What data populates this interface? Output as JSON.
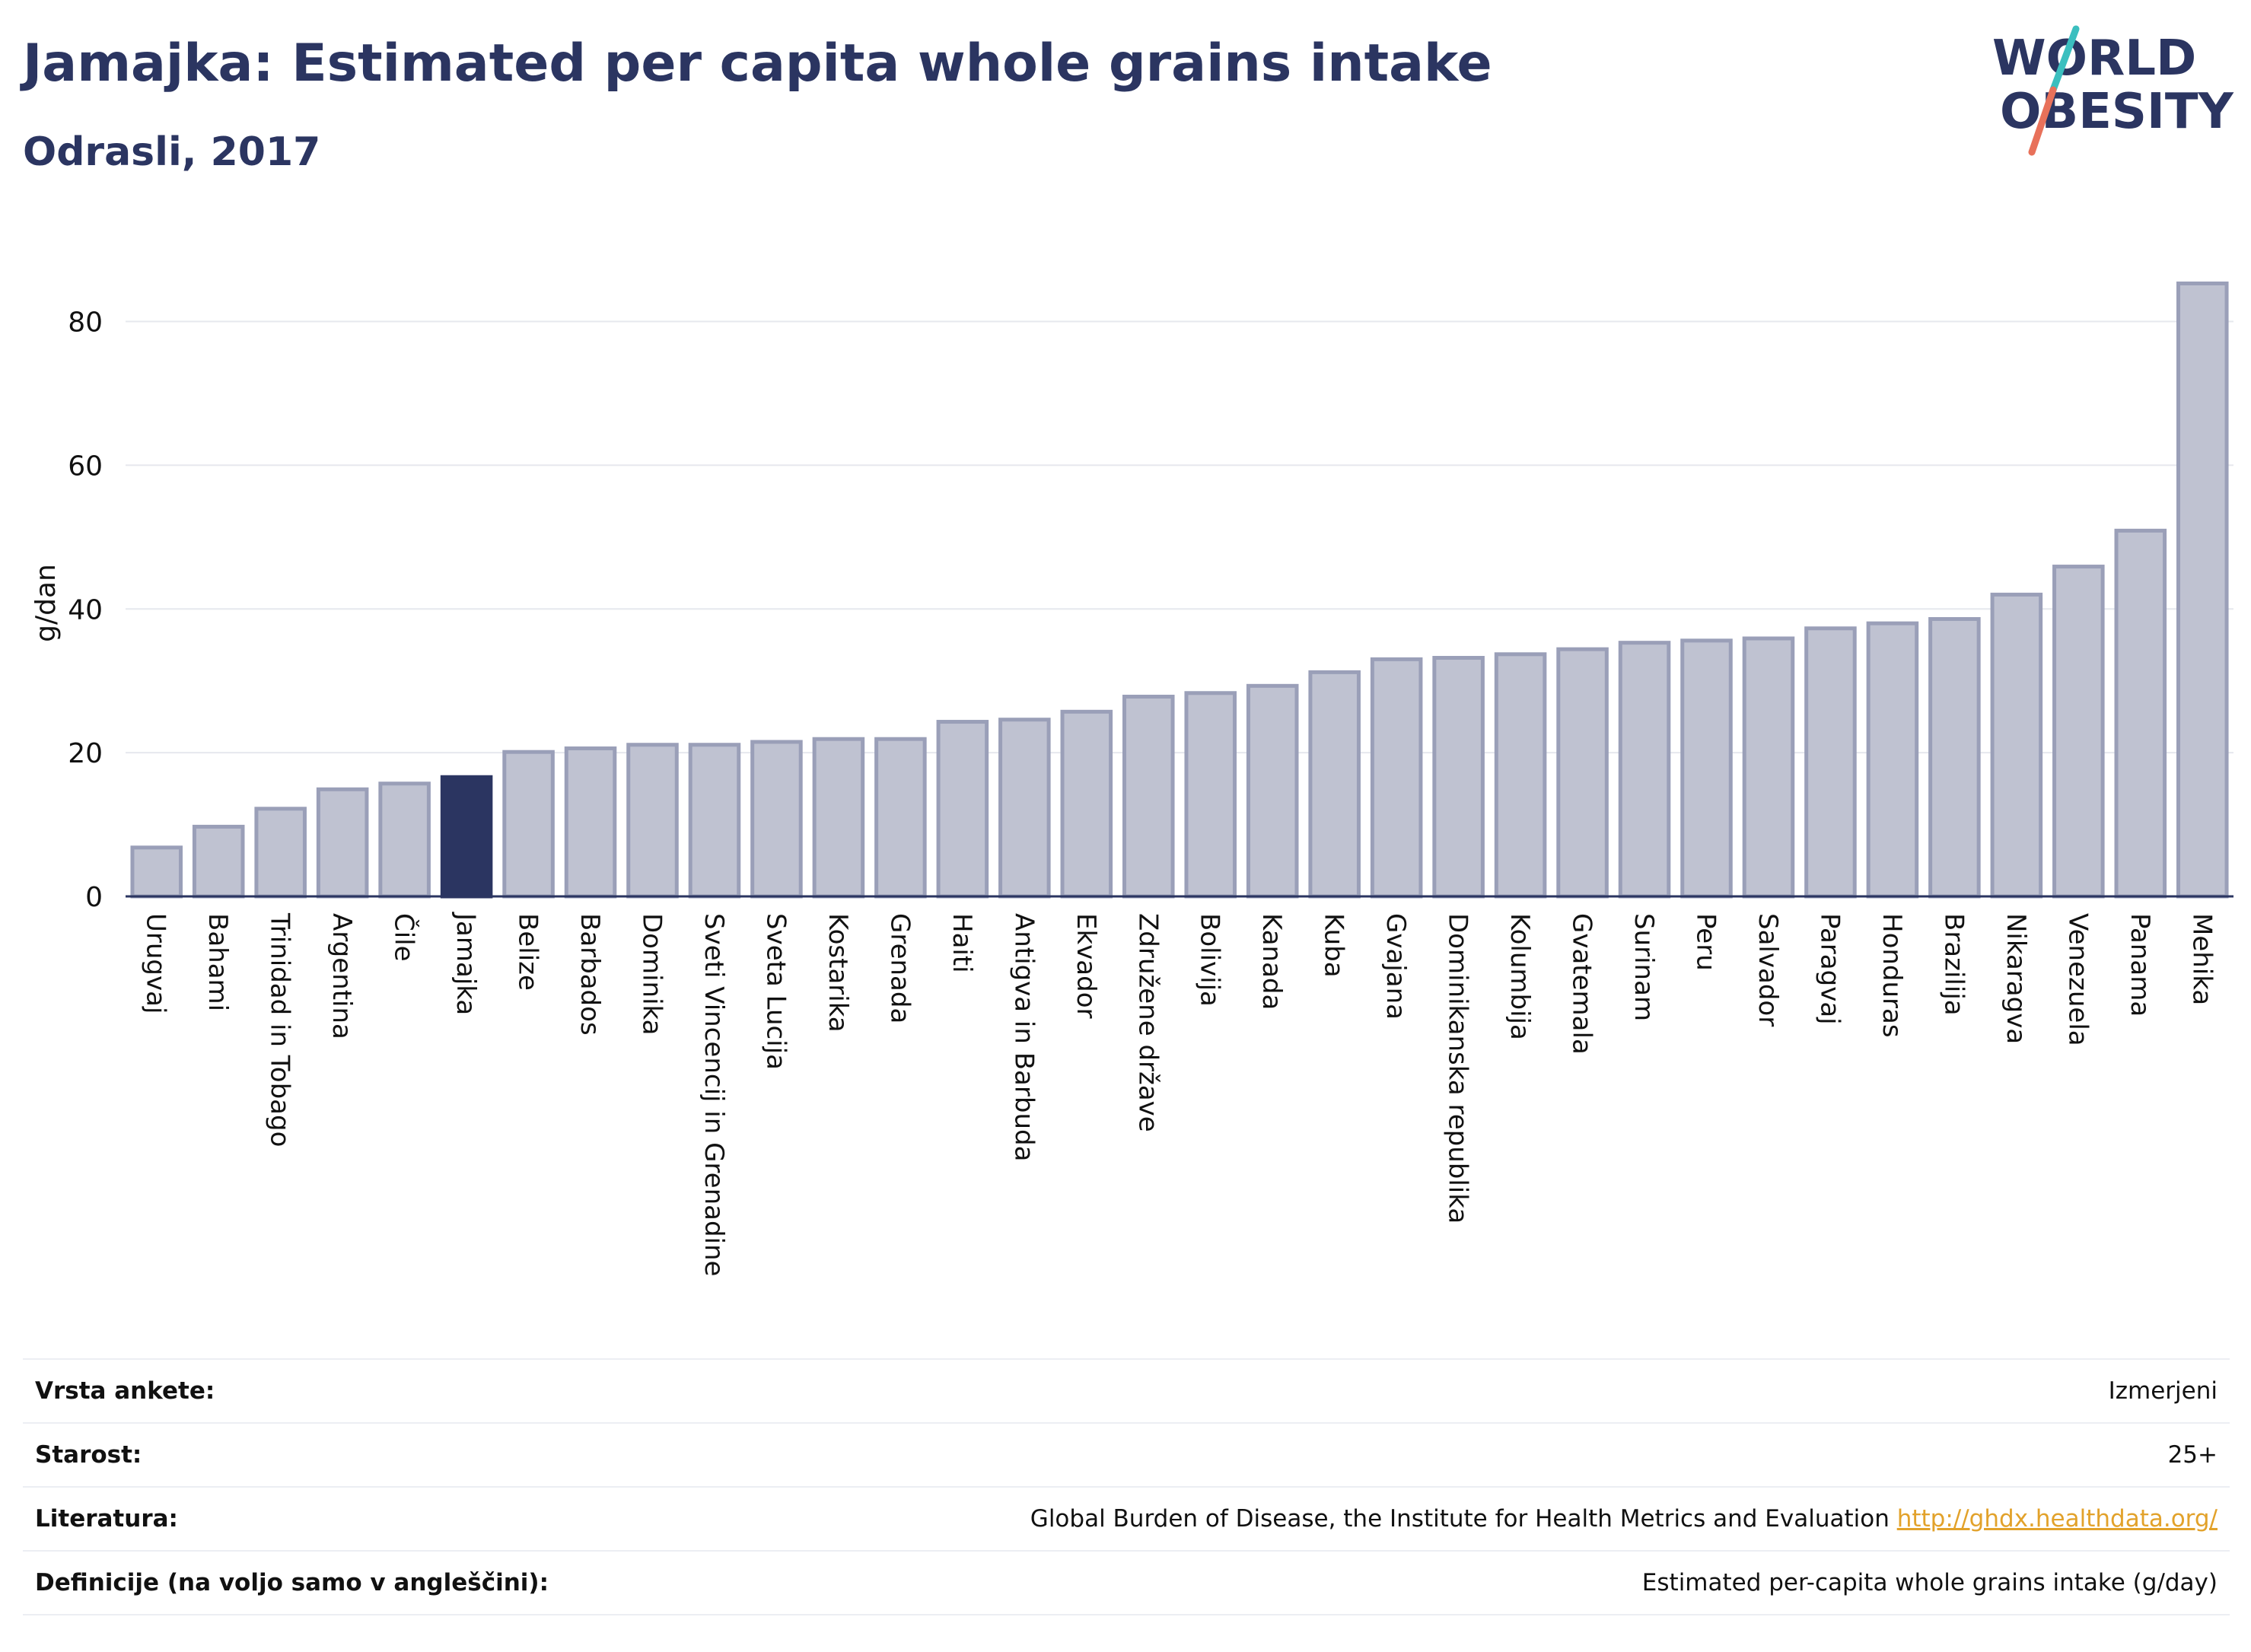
{
  "header": {
    "title": "Jamajka: Estimated per capita whole grains intake",
    "subtitle": "Odrasli, 2017",
    "logo_line1": "WORLD",
    "logo_line2": "OBESITY"
  },
  "colors": {
    "bar_default": "#bfc2d1",
    "bar_default_stroke": "#9a9fb8",
    "bar_highlight": "#2b3561",
    "title": "#2b3561",
    "logo_slash_top": "#3bbfbf",
    "logo_slash_bottom": "#e8715a",
    "link": "#e2a22b"
  },
  "chart_data": {
    "type": "bar",
    "ylabel": "g/dan",
    "ylim": [
      0,
      88
    ],
    "yticks": [
      0,
      20,
      40,
      60,
      80
    ],
    "grid": true,
    "highlight": "Jamajka",
    "categories": [
      "Urugvaj",
      "Bahami",
      "Trinidad in Tobago",
      "Argentina",
      "Čile",
      "Jamajka",
      "Belize",
      "Barbados",
      "Dominika",
      "Sveti Vincencij in Grenadine",
      "Sveta Lucija",
      "Kostarika",
      "Grenada",
      "Haiti",
      "Antigva in Barbuda",
      "Ekvador",
      "Združene države",
      "Bolivija",
      "Kanada",
      "Kuba",
      "Gvajana",
      "Dominikanska republika",
      "Kolumbija",
      "Gvatemala",
      "Surinam",
      "Peru",
      "Salvador",
      "Paragvaj",
      "Honduras",
      "Brazilija",
      "Nikaragva",
      "Venezuela",
      "Panama",
      "Mehika"
    ],
    "values": [
      6.8,
      9.7,
      12.2,
      14.9,
      15.7,
      16.6,
      20.1,
      20.6,
      21.1,
      21.1,
      21.5,
      21.9,
      21.9,
      24.3,
      24.6,
      25.7,
      27.8,
      28.3,
      29.3,
      31.2,
      33.0,
      33.2,
      33.7,
      34.4,
      35.3,
      35.6,
      35.9,
      37.3,
      38.0,
      38.6,
      42.0,
      45.9,
      50.9,
      85.3
    ]
  },
  "info": [
    {
      "label": "Vrsta ankete:",
      "value": "Izmerjeni"
    },
    {
      "label": "Starost:",
      "value": "25+"
    },
    {
      "label": "Literatura:",
      "value": "Global Burden of Disease, the Institute for Health Metrics and Evaluation",
      "link": "http://ghdx.healthdata.org/"
    },
    {
      "label": "Definicije (na voljo samo v angleščini):",
      "value": "Estimated per-capita whole grains intake (g/day)"
    }
  ]
}
